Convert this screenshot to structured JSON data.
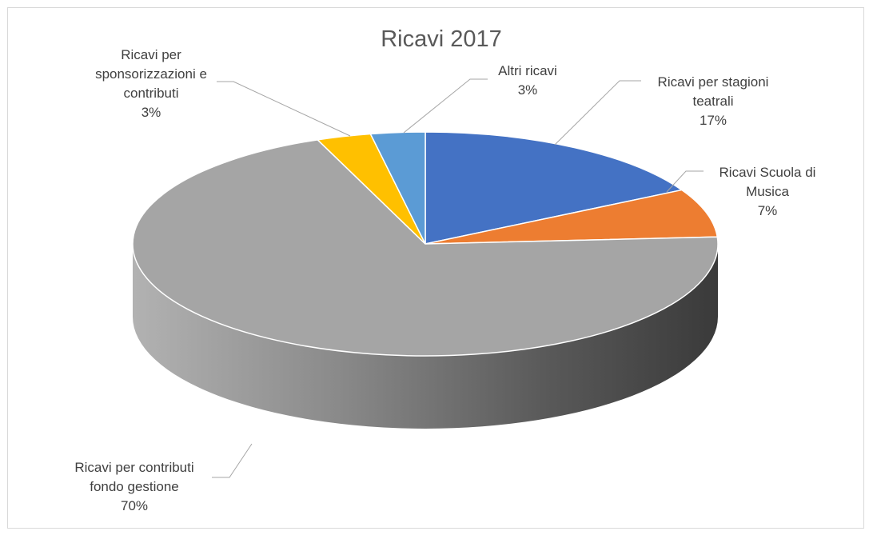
{
  "chart_data": {
    "type": "pie",
    "variant": "3d",
    "title": "Ricavi 2017",
    "legend": "none",
    "slices": [
      {
        "name": "Ricavi per stagioni teatrali",
        "percent_label": "17%",
        "value": 17,
        "color": "#4472c4",
        "label_lines": [
          "Ricavi per stagioni",
          "teatrali",
          "17%"
        ]
      },
      {
        "name": "Ricavi Scuola di Musica",
        "percent_label": "7%",
        "value": 7,
        "color": "#ed7d31",
        "label_lines": [
          "Ricavi Scuola di",
          "Musica",
          "7%"
        ]
      },
      {
        "name": "Ricavi per contributi fondo gestione",
        "percent_label": "70%",
        "value": 70,
        "color": "#a5a5a5",
        "label_lines": [
          "Ricavi per contributi",
          "fondo gestione",
          "70%"
        ]
      },
      {
        "name": "Ricavi per sponsorizzazioni e contributi",
        "percent_label": "3%",
        "value": 3,
        "color": "#ffc000",
        "label_lines": [
          "Ricavi per",
          "sponsorizzazioni e",
          "contributi",
          "3%"
        ]
      },
      {
        "name": "Altri ricavi",
        "percent_label": "3%",
        "value": 3,
        "color": "#5b9bd5",
        "label_lines": [
          "Altri ricavi",
          "3%"
        ]
      }
    ]
  }
}
